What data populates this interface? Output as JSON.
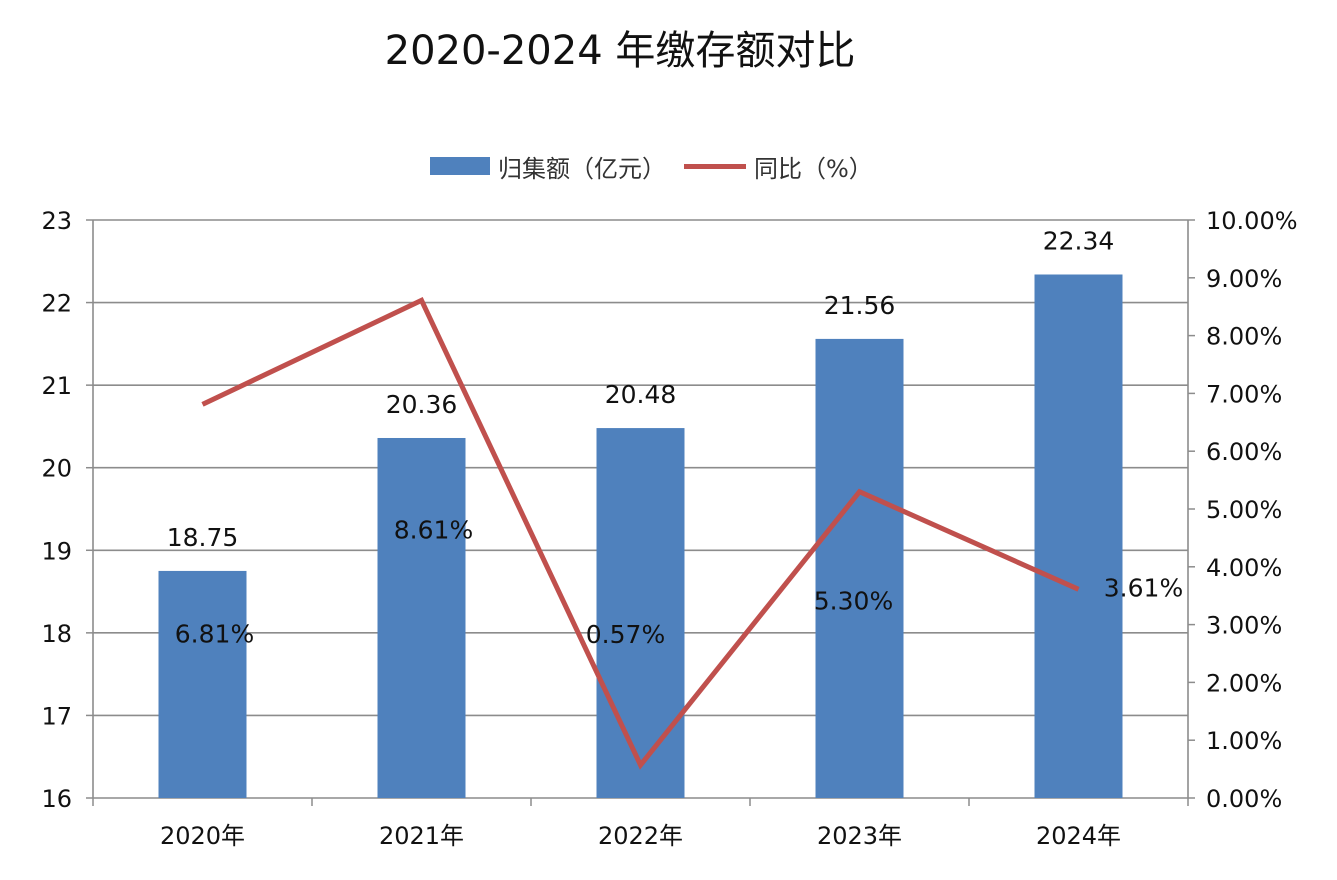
{
  "chart_data": {
    "type": "bar+line",
    "title": "2020-2024 年缴存额对比",
    "categories": [
      "2020年",
      "2021年",
      "2022年",
      "2023年",
      "2024年"
    ],
    "series": [
      {
        "name": "归集额（亿元）",
        "type": "bar",
        "axis": "left",
        "color": "#4f81bd",
        "values": [
          18.75,
          20.36,
          20.48,
          21.56,
          22.34
        ],
        "labels": [
          "18.75",
          "20.36",
          "20.48",
          "21.56",
          "22.34"
        ]
      },
      {
        "name": "同比（%）",
        "type": "line",
        "axis": "right",
        "color": "#c0504d",
        "values": [
          6.81,
          8.61,
          0.57,
          5.3,
          3.61
        ],
        "labels": [
          "6.81%",
          "8.61%",
          "0.57%",
          "5.30%",
          "3.61%"
        ]
      }
    ],
    "y_left": {
      "min": 16,
      "max": 23,
      "ticks": [
        "16",
        "17",
        "18",
        "19",
        "20",
        "21",
        "22",
        "23"
      ]
    },
    "y_right": {
      "min": 0,
      "max": 10,
      "ticks": [
        "0.00%",
        "1.00%",
        "2.00%",
        "3.00%",
        "4.00%",
        "5.00%",
        "6.00%",
        "7.00%",
        "8.00%",
        "9.00%",
        "10.00%"
      ]
    },
    "grid": true,
    "legend_position": "top"
  }
}
